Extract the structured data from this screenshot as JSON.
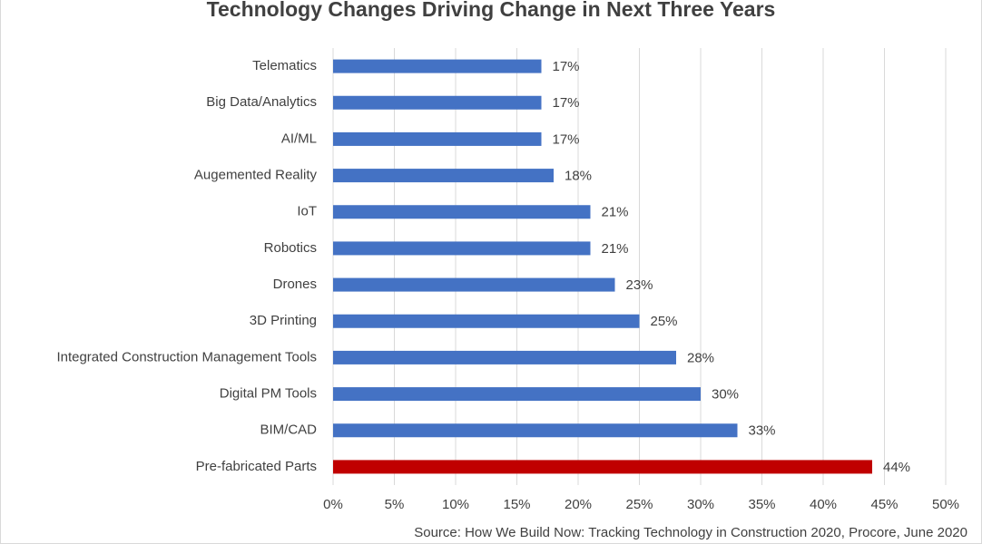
{
  "chart_data": {
    "type": "hbar",
    "title": "Technology Changes Driving Change in Next Three Years",
    "source": "Source: How We Build Now: Tracking Technology in Construction 2020, Procore, June 2020",
    "categories": [
      "Telematics",
      "Big Data/Analytics",
      "AI/ML",
      "Augemented Reality",
      "IoT",
      "Robotics",
      "Drones",
      "3D Printing",
      "Integrated Construction Management Tools",
      "Digital PM Tools",
      "BIM/CAD",
      "Pre-fabricated Parts"
    ],
    "values": [
      17,
      17,
      17,
      18,
      21,
      21,
      23,
      25,
      28,
      30,
      33,
      44
    ],
    "value_labels": [
      "17%",
      "17%",
      "17%",
      "18%",
      "21%",
      "21%",
      "23%",
      "25%",
      "28%",
      "30%",
      "33%",
      "44%"
    ],
    "colors": [
      "#4472c4",
      "#4472c4",
      "#4472c4",
      "#4472c4",
      "#4472c4",
      "#4472c4",
      "#4472c4",
      "#4472c4",
      "#4472c4",
      "#4472c4",
      "#4472c4",
      "#c00000"
    ],
    "xlim": [
      0,
      50
    ],
    "xticks": [
      {
        "value": 0,
        "label": "0%"
      },
      {
        "value": 5,
        "label": "5%"
      },
      {
        "value": 10,
        "label": "10%"
      },
      {
        "value": 15,
        "label": "15%"
      },
      {
        "value": 20,
        "label": "20%"
      },
      {
        "value": 25,
        "label": "25%"
      },
      {
        "value": 30,
        "label": "30%"
      },
      {
        "value": 35,
        "label": "35%"
      },
      {
        "value": 40,
        "label": "40%"
      },
      {
        "value": 45,
        "label": "45%"
      },
      {
        "value": 50,
        "label": "50%"
      }
    ],
    "grid": true
  }
}
